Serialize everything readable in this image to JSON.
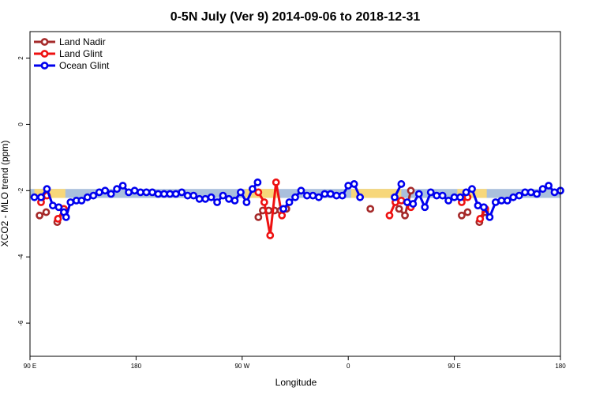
{
  "chart_data": {
    "type": "line",
    "title": "0-5N July (Ver 9)   2014-09-06 to 2018-12-31",
    "xlabel": "Longitude",
    "ylabel": "XCO2 - MLO trend (ppm)",
    "xlim": [
      0,
      360
    ],
    "ylim": [
      -7,
      2.8
    ],
    "x_ticks": [
      {
        "value": 0,
        "label": "90 E"
      },
      {
        "value": 72,
        "label": "180"
      },
      {
        "value": 144,
        "label": "90 W"
      },
      {
        "value": 216,
        "label": "0"
      },
      {
        "value": 288,
        "label": "90 E"
      },
      {
        "value": 360,
        "label": "180"
      }
    ],
    "y_ticks": [
      {
        "value": -6,
        "label": "-6"
      },
      {
        "value": -4,
        "label": "-4"
      },
      {
        "value": -2,
        "label": "-2"
      },
      {
        "value": 0,
        "label": "0"
      },
      {
        "value": 2,
        "label": "2"
      }
    ],
    "legend_position": "top-left",
    "band": {
      "y_low": -2.22,
      "y_high": -1.95,
      "land_color": "#f7d77a",
      "ocean_color": "#a9bfdc",
      "land_segments": [
        [
          3,
          24
        ],
        [
          146,
          168
        ],
        [
          218,
          252
        ],
        [
          290,
          310
        ]
      ]
    },
    "series": [
      {
        "name": "Land Nadir",
        "color": "#a52a2a",
        "segments": [
          [
            [
              6.5,
              -2.75
            ],
            [
              11,
              -2.65
            ]
          ],
          [
            [
              18.5,
              -2.95
            ],
            [
              23,
              -2.6
            ]
          ],
          [
            [
              155,
              -2.8
            ],
            [
              158,
              -2.6
            ],
            [
              162,
              -2.6
            ],
            [
              166,
              -2.6
            ],
            [
              170,
              -2.6
            ],
            [
              174,
              -2.55
            ]
          ],
          [
            [
              231,
              -2.55
            ]
          ],
          [
            [
              250.5,
              -2.55
            ],
            [
              254.5,
              -2.75
            ],
            [
              258.5,
              -2.0
            ]
          ],
          [
            [
              293,
              -2.75
            ],
            [
              297,
              -2.65
            ]
          ],
          [
            [
              305,
              -2.95
            ],
            [
              309,
              -2.65
            ]
          ]
        ]
      },
      {
        "name": "Land Glint",
        "color": "#ee1111",
        "segments": [
          [
            [
              7.5,
              -2.35
            ],
            [
              11.5,
              -2.15
            ]
          ],
          [
            [
              19,
              -2.85
            ],
            [
              23,
              -2.55
            ]
          ],
          [
            [
              155,
              -2.05
            ],
            [
              159,
              -2.35
            ],
            [
              163,
              -3.35
            ],
            [
              167,
              -1.75
            ],
            [
              171,
              -2.75
            ]
          ],
          [
            [
              244,
              -2.75
            ],
            [
              248,
              -2.35
            ],
            [
              252,
              -2.3
            ],
            [
              258.5,
              -2.5
            ]
          ],
          [
            [
              293,
              -2.35
            ],
            [
              297,
              -2.2
            ]
          ],
          [
            [
              305.5,
              -2.85
            ],
            [
              309,
              -2.55
            ]
          ]
        ]
      },
      {
        "name": "Ocean Glint",
        "color": "#0000ee",
        "segments": [
          [
            [
              3,
              -2.2
            ],
            [
              7.5,
              -2.2
            ],
            [
              11.5,
              -1.95
            ],
            [
              15.5,
              -2.45
            ],
            [
              19.5,
              -2.5
            ],
            [
              23,
              -2.65
            ],
            [
              24.5,
              -2.8
            ],
            [
              27.5,
              -2.35
            ],
            [
              31.5,
              -2.3
            ],
            [
              35,
              -2.3
            ],
            [
              39,
              -2.2
            ],
            [
              43,
              -2.15
            ],
            [
              47,
              -2.05
            ],
            [
              51,
              -2.0
            ],
            [
              55,
              -2.1
            ],
            [
              59,
              -1.95
            ],
            [
              63,
              -1.85
            ],
            [
              67,
              -2.05
            ],
            [
              71,
              -2.0
            ],
            [
              75,
              -2.05
            ],
            [
              79,
              -2.05
            ],
            [
              83,
              -2.05
            ],
            [
              87,
              -2.1
            ],
            [
              91,
              -2.1
            ],
            [
              95,
              -2.1
            ],
            [
              99,
              -2.1
            ],
            [
              103,
              -2.05
            ],
            [
              107,
              -2.15
            ],
            [
              111,
              -2.15
            ],
            [
              115,
              -2.25
            ],
            [
              119,
              -2.25
            ],
            [
              123,
              -2.2
            ],
            [
              127,
              -2.35
            ],
            [
              131,
              -2.15
            ],
            [
              135,
              -2.25
            ],
            [
              139,
              -2.3
            ],
            [
              143,
              -2.05
            ],
            [
              147,
              -2.35
            ],
            [
              151,
              -1.95
            ],
            [
              154.5,
              -1.75
            ]
          ],
          [
            [
              172,
              -2.55
            ],
            [
              176,
              -2.35
            ],
            [
              180,
              -2.2
            ],
            [
              184,
              -2.0
            ],
            [
              188,
              -2.15
            ],
            [
              192,
              -2.15
            ],
            [
              196,
              -2.2
            ],
            [
              200,
              -2.1
            ],
            [
              204,
              -2.1
            ],
            [
              208,
              -2.15
            ],
            [
              212,
              -2.15
            ],
            [
              216,
              -1.85
            ],
            [
              220,
              -1.8
            ],
            [
              224,
              -2.2
            ]
          ],
          [
            [
              247.5,
              -2.2
            ],
            [
              252,
              -1.8
            ]
          ],
          [
            [
              256,
              -2.35
            ],
            [
              260,
              -2.4
            ],
            [
              264,
              -2.1
            ],
            [
              268,
              -2.5
            ],
            [
              272,
              -2.05
            ],
            [
              276,
              -2.15
            ],
            [
              280,
              -2.15
            ],
            [
              284,
              -2.3
            ],
            [
              288,
              -2.2
            ],
            [
              292,
              -2.2
            ],
            [
              296,
              -2.05
            ],
            [
              300,
              -1.95
            ],
            [
              304,
              -2.45
            ],
            [
              308,
              -2.5
            ],
            [
              312,
              -2.8
            ],
            [
              316,
              -2.35
            ],
            [
              320,
              -2.3
            ],
            [
              324,
              -2.3
            ],
            [
              328,
              -2.2
            ],
            [
              332,
              -2.15
            ],
            [
              336,
              -2.05
            ],
            [
              340,
              -2.05
            ],
            [
              344,
              -2.1
            ],
            [
              348,
              -1.95
            ],
            [
              352,
              -1.85
            ],
            [
              356,
              -2.05
            ],
            [
              360,
              -2.0
            ]
          ]
        ]
      }
    ]
  }
}
